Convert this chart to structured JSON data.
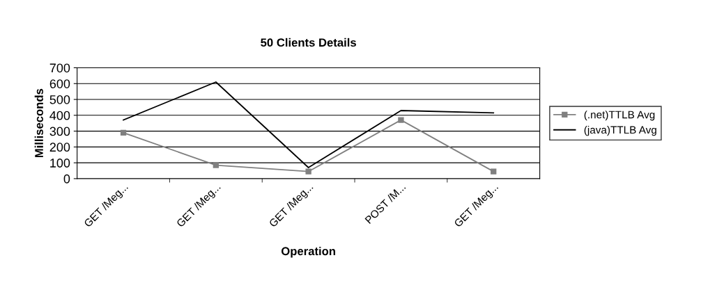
{
  "chart_data": {
    "type": "line",
    "title": "50 Clients Details",
    "xlabel": "Operation",
    "ylabel": "Milliseconds",
    "categories": [
      "GET /Meg...",
      "GET /Meg...",
      "GET /Meg...",
      "POST /M...",
      "GET /Meg..."
    ],
    "series": [
      {
        "name": "(.net)TTLB Avg",
        "color": "#808080",
        "marker": "square",
        "values": [
          290,
          85,
          45,
          370,
          45
        ]
      },
      {
        "name": "(java)TTLB Avg",
        "color": "#000000",
        "marker": "none",
        "values": [
          370,
          610,
          70,
          430,
          415
        ]
      }
    ],
    "ylim": [
      0,
      700
    ],
    "yticks": [
      0,
      100,
      200,
      300,
      400,
      500,
      600,
      700
    ],
    "grid": "y",
    "legend": "right"
  }
}
